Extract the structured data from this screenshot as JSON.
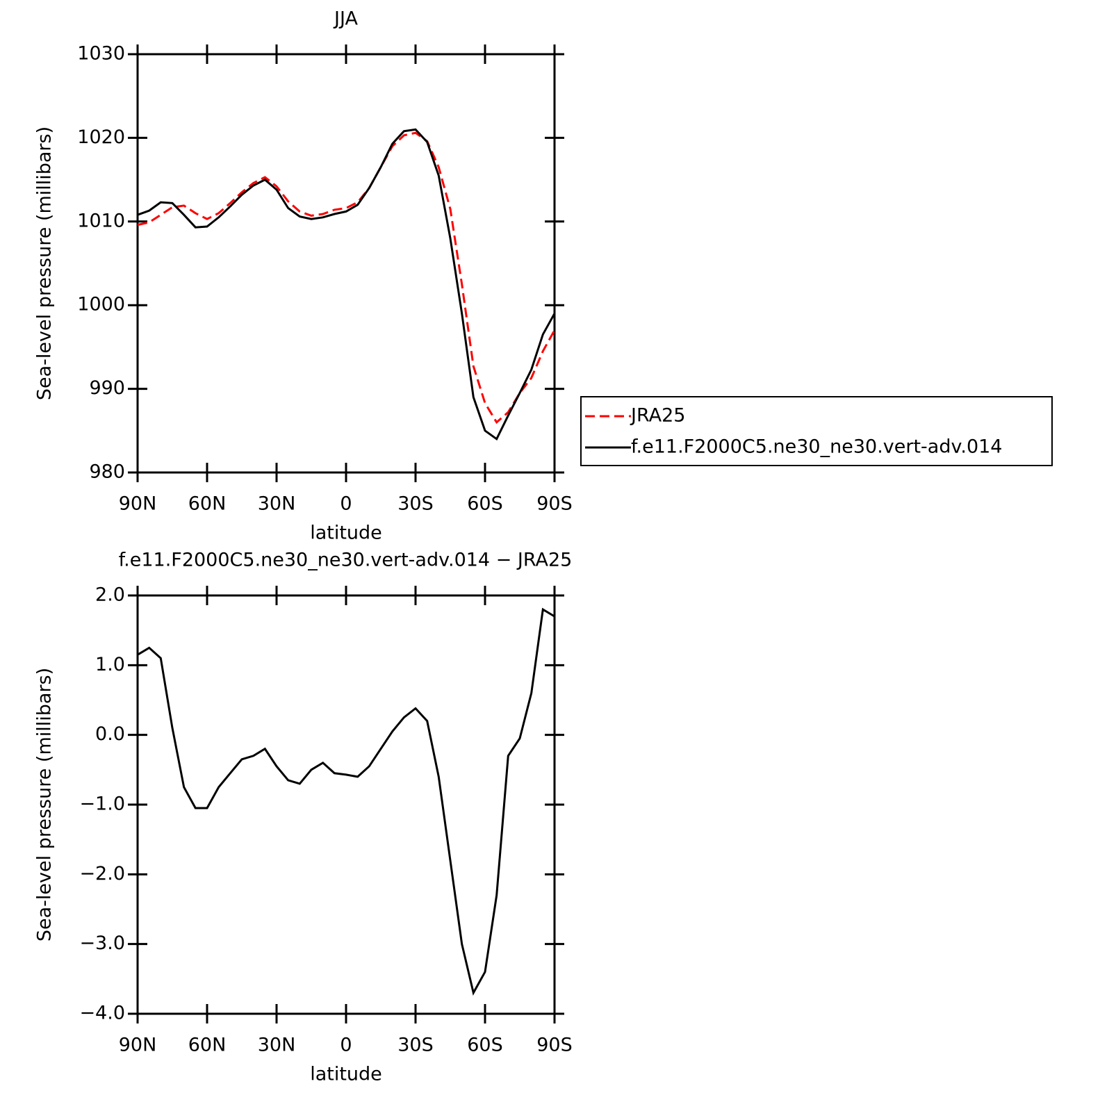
{
  "chart_data": [
    {
      "type": "line",
      "title": "JJA",
      "xlabel": "latitude",
      "ylabel": "Sea-level pressure (millibars)",
      "x": [
        90,
        85,
        80,
        75,
        70,
        65,
        60,
        55,
        50,
        45,
        40,
        35,
        30,
        25,
        20,
        15,
        10,
        5,
        0,
        -5,
        -10,
        -15,
        -20,
        -25,
        -30,
        -35,
        -40,
        -45,
        -50,
        -55,
        -60,
        -65,
        -70,
        -75,
        -80,
        -85,
        -90
      ],
      "series": [
        {
          "name": "JRA25",
          "color": "#ff0000",
          "dashed": true,
          "values": [
            1009.6,
            1009.9,
            1010.8,
            1011.7,
            1011.9,
            1011.0,
            1010.3,
            1011.0,
            1012.2,
            1013.5,
            1014.6,
            1015.3,
            1014.2,
            1012.4,
            1011.2,
            1010.7,
            1010.9,
            1011.4,
            1011.6,
            1012.3,
            1014.0,
            1016.5,
            1019.0,
            1020.3,
            1020.6,
            1019.6,
            1016.5,
            1011.5,
            1002.5,
            992.7,
            988.3,
            986.0,
            987.2,
            989.5,
            991.3,
            994.5,
            997.0
          ]
        },
        {
          "name": "f.e11.F2000C5.ne30_ne30.vert-adv.014",
          "color": "#000000",
          "dashed": false,
          "values": [
            1010.8,
            1011.3,
            1012.3,
            1012.2,
            1010.8,
            1009.3,
            1009.4,
            1010.5,
            1011.8,
            1013.2,
            1014.3,
            1015.0,
            1013.8,
            1011.6,
            1010.6,
            1010.3,
            1010.5,
            1010.9,
            1011.2,
            1012.0,
            1014.0,
            1016.5,
            1019.3,
            1020.8,
            1021.0,
            1019.5,
            1015.5,
            1008.0,
            999.0,
            989.0,
            985.0,
            984.0,
            986.8,
            989.5,
            992.3,
            996.5,
            999.0
          ]
        }
      ],
      "xlim": [
        90,
        -90
      ],
      "xticks": [
        {
          "value": 90,
          "label": "90N"
        },
        {
          "value": 60,
          "label": "60N"
        },
        {
          "value": 30,
          "label": "30N"
        },
        0,
        {
          "value": -30,
          "label": "30S"
        },
        {
          "value": -60,
          "label": "60S"
        },
        {
          "value": -90,
          "label": "90S"
        }
      ],
      "ylim": [
        980,
        1030
      ],
      "yticks": [
        980,
        990,
        1000,
        1010,
        1020,
        1030
      ],
      "legend": "right"
    },
    {
      "type": "line",
      "title": "f.e11.F2000C5.ne30_ne30.vert-adv.014 − JRA25",
      "xlabel": "latitude",
      "ylabel": "Sea-level pressure (millibars)",
      "x": [
        90,
        85,
        80,
        75,
        70,
        65,
        60,
        55,
        50,
        45,
        40,
        35,
        30,
        25,
        20,
        15,
        10,
        5,
        0,
        -5,
        -10,
        -15,
        -20,
        -25,
        -30,
        -35,
        -40,
        -45,
        -50,
        -55,
        -60,
        -65,
        -70,
        -75,
        -80,
        -85,
        -90
      ],
      "color": "#000000",
      "values": [
        1.15,
        1.25,
        1.1,
        0.1,
        -0.75,
        -1.05,
        -1.05,
        -0.75,
        -0.55,
        -0.35,
        -0.3,
        -0.2,
        -0.45,
        -0.65,
        -0.7,
        -0.5,
        -0.4,
        -0.55,
        -0.57,
        -0.6,
        -0.45,
        -0.2,
        0.05,
        0.25,
        0.38,
        0.2,
        -0.6,
        -1.8,
        -3.0,
        -3.7,
        -3.4,
        -2.3,
        -0.3,
        -0.05,
        0.6,
        1.8,
        1.7
      ],
      "xlim": [
        90,
        -90
      ],
      "xticks": [
        {
          "value": 90,
          "label": "90N"
        },
        {
          "value": 60,
          "label": "60N"
        },
        {
          "value": 30,
          "label": "30N"
        },
        0,
        {
          "value": -30,
          "label": "30S"
        },
        {
          "value": -60,
          "label": "60S"
        },
        {
          "value": -90,
          "label": "90S"
        }
      ],
      "ylim": [
        -4,
        2
      ],
      "yticks": [
        {
          "value": -4,
          "label": "−4.0"
        },
        {
          "value": -3,
          "label": "−3.0"
        },
        {
          "value": -2,
          "label": "−2.0"
        },
        {
          "value": -1,
          "label": "−1.0"
        },
        {
          "value": 0,
          "label": "0.0"
        },
        {
          "value": 1,
          "label": "1.0"
        },
        {
          "value": 2,
          "label": "2.0"
        }
      ]
    }
  ]
}
